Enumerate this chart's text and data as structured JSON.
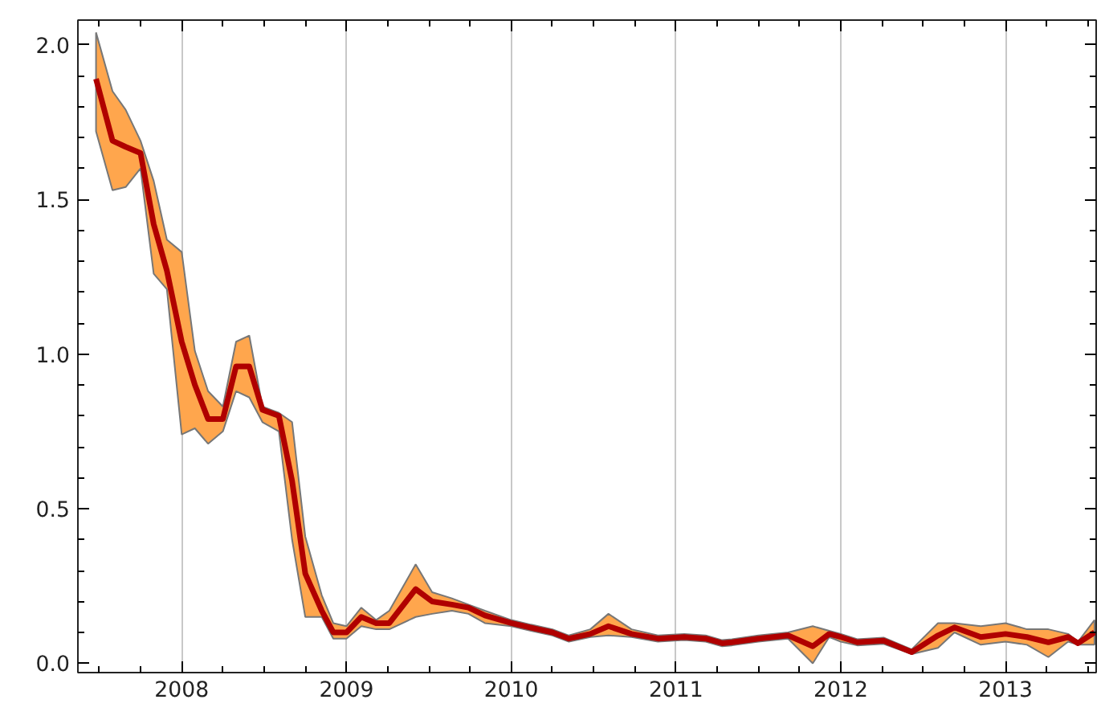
{
  "chart_data": {
    "type": "line",
    "x": [
      2007.48,
      2007.58,
      2007.66,
      2007.75,
      2007.83,
      2007.91,
      2008.0,
      2008.08,
      2008.16,
      2008.25,
      2008.33,
      2008.41,
      2008.49,
      2008.59,
      2008.67,
      2008.75,
      2008.85,
      2008.92,
      2009.0,
      2009.09,
      2009.18,
      2009.26,
      2009.42,
      2009.52,
      2009.64,
      2009.74,
      2009.84,
      2010.0,
      2010.12,
      2010.25,
      2010.35,
      2010.48,
      2010.59,
      2010.73,
      2010.89,
      2011.05,
      2011.18,
      2011.28,
      2011.34,
      2011.5,
      2011.68,
      2011.83,
      2011.93,
      2012.0,
      2012.1,
      2012.26,
      2012.43,
      2012.59,
      2012.69,
      2012.85,
      2013.0,
      2013.13,
      2013.26,
      2013.38,
      2013.44,
      2013.54
    ],
    "series": [
      {
        "color": "#b00000",
        "values": [
          1.89,
          1.69,
          1.67,
          1.65,
          1.42,
          1.27,
          1.04,
          0.9,
          0.79,
          0.79,
          0.96,
          0.96,
          0.82,
          0.8,
          0.59,
          0.29,
          0.17,
          0.1,
          0.1,
          0.15,
          0.13,
          0.13,
          0.24,
          0.2,
          0.19,
          0.18,
          0.155,
          0.13,
          0.115,
          0.1,
          0.08,
          0.095,
          0.12,
          0.095,
          0.08,
          0.085,
          0.08,
          0.065,
          0.068,
          0.08,
          0.09,
          0.055,
          0.095,
          0.085,
          0.068,
          0.073,
          0.036,
          0.09,
          0.116,
          0.085,
          0.095,
          0.085,
          0.068,
          0.085,
          0.065,
          0.1
        ],
        "lower": [
          1.72,
          1.53,
          1.54,
          1.6,
          1.26,
          1.21,
          0.74,
          0.76,
          0.71,
          0.75,
          0.88,
          0.86,
          0.78,
          0.75,
          0.4,
          0.15,
          0.15,
          0.08,
          0.08,
          0.12,
          0.11,
          0.11,
          0.15,
          0.16,
          0.17,
          0.16,
          0.13,
          0.12,
          0.105,
          0.09,
          0.07,
          0.085,
          0.09,
          0.085,
          0.07,
          0.075,
          0.07,
          0.055,
          0.058,
          0.07,
          0.08,
          0.0,
          0.085,
          0.07,
          0.058,
          0.063,
          0.03,
          0.05,
          0.1,
          0.06,
          0.07,
          0.06,
          0.02,
          0.07,
          0.06,
          0.06
        ],
        "upper": [
          2.04,
          1.85,
          1.79,
          1.69,
          1.56,
          1.37,
          1.33,
          1.01,
          0.88,
          0.83,
          1.04,
          1.06,
          0.83,
          0.81,
          0.78,
          0.41,
          0.22,
          0.13,
          0.12,
          0.18,
          0.14,
          0.17,
          0.32,
          0.23,
          0.21,
          0.19,
          0.17,
          0.14,
          0.125,
          0.11,
          0.09,
          0.11,
          0.16,
          0.11,
          0.09,
          0.095,
          0.09,
          0.075,
          0.078,
          0.09,
          0.1,
          0.12,
          0.105,
          0.095,
          0.078,
          0.083,
          0.045,
          0.13,
          0.13,
          0.12,
          0.13,
          0.11,
          0.11,
          0.095,
          0.07,
          0.14
        ]
      }
    ],
    "xlim": [
      2007.37,
      2013.55
    ],
    "ylim": [
      -0.03,
      2.08
    ],
    "xticks": [
      2008,
      2009,
      2010,
      2011,
      2012,
      2013
    ],
    "yticks": [
      {
        "value": 0,
        "label": "0.0"
      },
      {
        "value": 0.5,
        "label": "0.5"
      },
      {
        "value": 1,
        "label": "1.0"
      },
      {
        "value": 1.5,
        "label": "1.5"
      },
      {
        "value": 2,
        "label": "2.0"
      }
    ],
    "grid": "x",
    "line_style": "solid"
  }
}
